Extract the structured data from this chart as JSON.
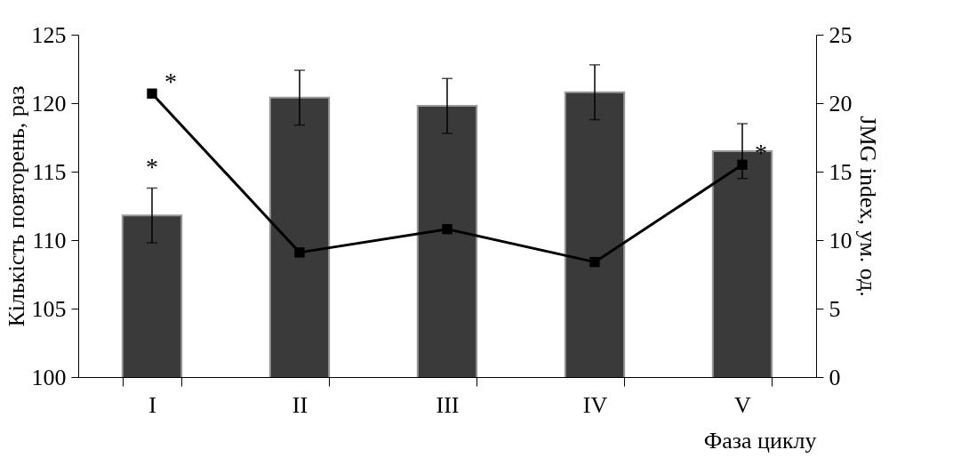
{
  "chart_data": {
    "type": "bar",
    "xlabel": "Фаза циклу",
    "ylabel": "Кількість повторень, раз",
    "y2label": "JMG index, ум. од.",
    "categories": [
      "I",
      "II",
      "III",
      "IV",
      "V"
    ],
    "series": [
      {
        "color": "#3a3a3a",
        "values": [
          111.8,
          120.4,
          119.8,
          120.8,
          116.5
        ],
        "errors": [
          2,
          2,
          2,
          2,
          2
        ]
      },
      {
        "type": "line",
        "axis": "y2",
        "color": "#000000",
        "values": [
          20.7,
          9.1,
          10.8,
          8.4,
          15.5
        ]
      }
    ],
    "ylim": [
      100,
      125
    ],
    "yticks": [
      100,
      105,
      110,
      115,
      120,
      125
    ],
    "y2lim": [
      0,
      25
    ],
    "y2ticks": [
      0,
      5,
      10,
      15,
      20,
      25
    ],
    "annotations": [
      "*",
      "*",
      "*"
    ],
    "marker": "square",
    "line_style": "solid",
    "grid": false,
    "legend": false
  }
}
